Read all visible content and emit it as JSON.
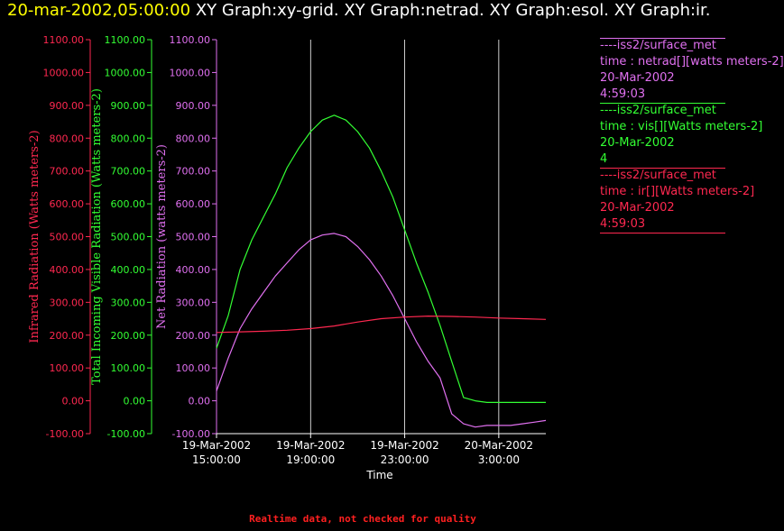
{
  "header": {
    "timestamp": "20-mar-2002,05:00:00",
    "titles": "XY Graph:xy-grid.  XY Graph:netrad.  XY Graph:esol.  XY Graph:ir."
  },
  "colors": {
    "ir": "#ff2850",
    "vis": "#33ff33",
    "net": "#e070f0",
    "grid": "#ffffff",
    "background": "#000000"
  },
  "chart_data": {
    "type": "line",
    "xlabel": "Time",
    "x_ticks": [
      {
        "value": 15,
        "line1": "19-Mar-2002",
        "line2": "15:00:00"
      },
      {
        "value": 19,
        "line1": "19-Mar-2002",
        "line2": "19:00:00"
      },
      {
        "value": 23,
        "line1": "19-Mar-2002",
        "line2": "23:00:00"
      },
      {
        "value": 27,
        "line1": "20-Mar-2002",
        "line2": "3:00:00"
      }
    ],
    "xlim": [
      15,
      29
    ],
    "y_axes": [
      {
        "key": "ir",
        "label": "Infrared Radiation (Watts meters-2)",
        "ylim": [
          -100,
          1100
        ],
        "ticks": [
          "-100.00",
          "0.00",
          "100.00",
          "200.00",
          "300.00",
          "400.00",
          "500.00",
          "600.00",
          "700.00",
          "800.00",
          "900.00",
          "1000.00",
          "1100.00"
        ]
      },
      {
        "key": "vis",
        "label": "Total Incoming Visible Radiation (Watts meters-2)",
        "ylim": [
          -100,
          1100
        ],
        "ticks": [
          "-100.00",
          "0.00",
          "100.00",
          "200.00",
          "300.00",
          "400.00",
          "500.00",
          "600.00",
          "700.00",
          "800.00",
          "900.00",
          "1000.00",
          "1100.00"
        ]
      },
      {
        "key": "net",
        "label": "Net Radiation (watts meters-2)",
        "ylim": [
          -100,
          1100
        ],
        "ticks": [
          "-100.00",
          "0.00",
          "100.00",
          "200.00",
          "300.00",
          "400.00",
          "500.00",
          "600.00",
          "700.00",
          "800.00",
          "900.00",
          "1000.00",
          "1100.00"
        ]
      }
    ],
    "series": [
      {
        "key": "vis",
        "x": [
          15.0,
          15.5,
          16.0,
          16.5,
          17.0,
          17.5,
          18.0,
          18.5,
          19.0,
          19.5,
          20.0,
          20.5,
          21.0,
          21.5,
          22.0,
          22.5,
          23.0,
          23.5,
          24.0,
          24.5,
          25.0,
          25.5,
          26.0,
          26.5,
          27.0,
          27.5,
          28.0,
          28.5,
          29.0
        ],
        "y": [
          160,
          260,
          400,
          490,
          560,
          630,
          710,
          770,
          820,
          855,
          870,
          855,
          820,
          770,
          700,
          620,
          520,
          420,
          330,
          230,
          120,
          10,
          0,
          -5,
          -5,
          -5,
          -5,
          -5,
          -5
        ]
      },
      {
        "key": "net",
        "x": [
          15.0,
          15.5,
          16.0,
          16.5,
          17.0,
          17.5,
          18.0,
          18.5,
          19.0,
          19.5,
          20.0,
          20.5,
          21.0,
          21.5,
          22.0,
          22.5,
          23.0,
          23.5,
          24.0,
          24.5,
          25.0,
          25.5,
          26.0,
          26.5,
          27.0,
          27.5,
          28.0,
          28.5,
          29.0
        ],
        "y": [
          30,
          130,
          220,
          280,
          330,
          380,
          420,
          460,
          490,
          505,
          510,
          500,
          470,
          430,
          380,
          320,
          250,
          180,
          120,
          70,
          -40,
          -70,
          -80,
          -75,
          -75,
          -75,
          -70,
          -65,
          -60
        ]
      },
      {
        "key": "ir",
        "x": [
          15.0,
          16.0,
          17.0,
          18.0,
          19.0,
          20.0,
          21.0,
          22.0,
          23.0,
          24.0,
          25.0,
          26.0,
          27.0,
          28.0,
          29.0
        ],
        "y": [
          208,
          210,
          212,
          215,
          220,
          228,
          240,
          250,
          255,
          258,
          257,
          255,
          252,
          250,
          248
        ]
      }
    ]
  },
  "legend": [
    {
      "key": "net",
      "station": "----iss2/surface_met",
      "variable": "time : netrad[][watts meters-2]",
      "date": "20-Mar-2002",
      "value": "4:59:03"
    },
    {
      "key": "vis",
      "station": "----iss2/surface_met",
      "variable": "time : vis[][Watts meters-2]",
      "date": "20-Mar-2002",
      "value": "4"
    },
    {
      "key": "ir",
      "station": "----iss2/surface_met",
      "variable": "time : ir[][Watts meters-2]",
      "date": "20-Mar-2002",
      "value": "4:59:03"
    }
  ],
  "footer": "Realtime data, not checked for quality"
}
